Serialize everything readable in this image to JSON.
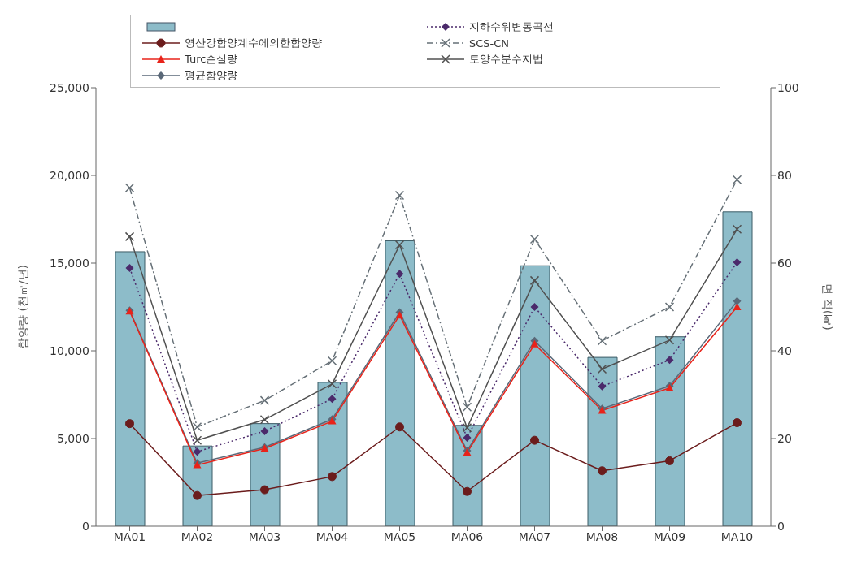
{
  "chart_data": {
    "type": "line",
    "categories": [
      "MA01",
      "MA02",
      "MA03",
      "MA04",
      "MA05",
      "MA06",
      "MA07",
      "MA08",
      "MA09",
      "MA10"
    ],
    "ylabel": "함양량 (천㎥/년)",
    "y2label": "면 적(㎢)",
    "ylim": [
      0,
      25000
    ],
    "yticks": [
      {
        "value": 0,
        "label": "0"
      },
      {
        "value": 5000,
        "label": "5,000"
      },
      {
        "value": 10000,
        "label": "10,000"
      },
      {
        "value": 15000,
        "label": "15,000"
      },
      {
        "value": 20000,
        "label": "20,000"
      },
      {
        "value": 25000,
        "label": "25,000"
      }
    ],
    "y2lim": [
      0,
      100
    ],
    "y2ticks": [
      0,
      20,
      40,
      60,
      80,
      100
    ],
    "grid": false,
    "legend": "top",
    "series": [
      {
        "type": "bar",
        "axis": "y2",
        "color": "#8dbcc9",
        "values": [
          62.6,
          18.3,
          23.4,
          32.8,
          65.1,
          23.0,
          59.4,
          38.5,
          43.2,
          71.7
        ]
      },
      {
        "name": "영산강함양계수에의한함양량",
        "color": "#6b1c1c",
        "marker": "circle",
        "line_style": "solid",
        "values": [
          5850,
          1750,
          2080,
          2830,
          5660,
          1980,
          4900,
          3160,
          3730,
          5900
        ]
      },
      {
        "name": "Turc손실량",
        "color": "#e8231a",
        "marker": "triangle",
        "line_style": "solid",
        "values": [
          12260,
          3490,
          4430,
          5990,
          12030,
          4200,
          10380,
          6600,
          7880,
          12500
        ]
      },
      {
        "name": "평균함양량",
        "color": "#5a6878",
        "marker": "diamond",
        "line_style": "solid",
        "values": [
          12300,
          3600,
          4500,
          6100,
          12200,
          4300,
          10570,
          6700,
          8000,
          12830
        ]
      },
      {
        "name": "지하수위변동곡선",
        "color": "#4b2a6b",
        "marker": "diamond",
        "line_style": "dotted",
        "values": [
          14720,
          4250,
          5420,
          7260,
          14390,
          5050,
          12500,
          7970,
          9480,
          15050
        ]
      },
      {
        "name": "SCS-CN",
        "color": "#667077",
        "marker": "cross",
        "line_style": "dashed",
        "values": [
          19290,
          5660,
          7170,
          9430,
          18870,
          6790,
          16370,
          10570,
          12500,
          19760
        ]
      },
      {
        "name": "토양수분수지법",
        "color": "#505050",
        "marker": "cross",
        "line_style": "solid",
        "values": [
          16510,
          4900,
          6080,
          8110,
          16040,
          5610,
          14010,
          8960,
          10610,
          16930
        ]
      }
    ]
  }
}
